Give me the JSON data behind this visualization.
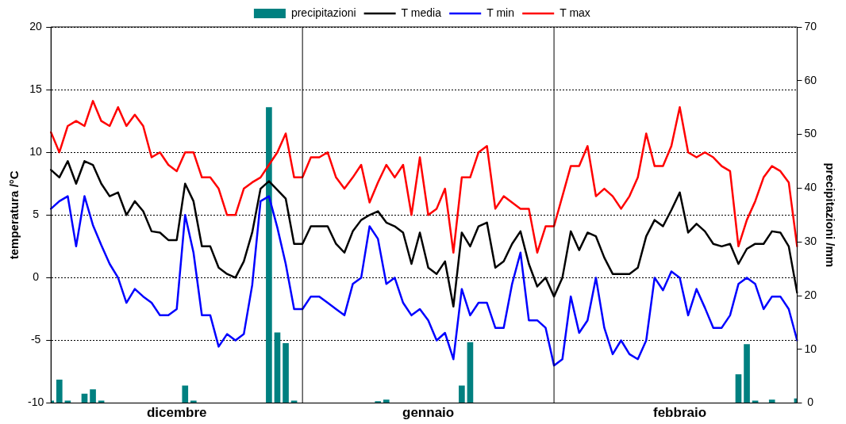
{
  "chart_data": {
    "type": "line",
    "categories": [
      null,
      null,
      null,
      null,
      null,
      null,
      null,
      null,
      null,
      null,
      null,
      null,
      null,
      null,
      null,
      "dicembre",
      null,
      null,
      null,
      null,
      null,
      null,
      null,
      null,
      null,
      null,
      null,
      null,
      null,
      null,
      null,
      null,
      null,
      null,
      null,
      null,
      null,
      null,
      null,
      null,
      null,
      null,
      null,
      null,
      null,
      "gennaio",
      null,
      null,
      null,
      null,
      null,
      null,
      null,
      null,
      null,
      null,
      null,
      null,
      null,
      null,
      null,
      null,
      null,
      null,
      null,
      null,
      null,
      null,
      null,
      null,
      null,
      null,
      null,
      null,
      null,
      "febbraio",
      null,
      null,
      null,
      null,
      null,
      null,
      null,
      null,
      null,
      null,
      null,
      null,
      null,
      null
    ],
    "ylabel": "temperatura /°C",
    "y2label": "precipitazioni /mm",
    "ylim": [
      -10,
      20
    ],
    "yticks": [
      -10,
      -5,
      0,
      5,
      10,
      15,
      20
    ],
    "y2lim": [
      0,
      70
    ],
    "y2ticks": [
      0,
      10,
      20,
      30,
      40,
      50,
      60,
      70
    ],
    "grid": "y",
    "legend": "top",
    "marker": "none",
    "line_style": "solid",
    "series": [
      {
        "name": "precipitazioni",
        "type": "bar",
        "axis": "y2",
        "color": "#008080",
        "values": [
          0.4,
          4.3,
          0.4,
          null,
          1.7,
          2.5,
          0.4,
          null,
          null,
          null,
          null,
          null,
          null,
          null,
          null,
          null,
          3.2,
          0.4,
          null,
          null,
          null,
          null,
          null,
          null,
          null,
          null,
          55,
          13.1,
          11.1,
          0.4,
          null,
          null,
          null,
          null,
          null,
          null,
          null,
          null,
          null,
          0.3,
          0.6,
          null,
          null,
          null,
          null,
          null,
          null,
          null,
          null,
          3.2,
          11.3,
          null,
          null,
          null,
          null,
          null,
          null,
          null,
          null,
          null,
          null,
          null,
          null,
          null,
          null,
          null,
          null,
          null,
          null,
          null,
          null,
          null,
          null,
          null,
          null,
          null,
          null,
          null,
          null,
          null,
          null,
          null,
          5.3,
          10.9,
          0.4,
          null,
          0.6,
          null,
          null,
          0.8
        ]
      },
      {
        "name": "T media",
        "color": "#000000",
        "values": [
          8.6,
          8.0,
          9.3,
          7.5,
          9.3,
          9.0,
          7.5,
          6.5,
          6.8,
          5.0,
          6.1,
          5.3,
          3.7,
          3.6,
          3.0,
          3.0,
          7.5,
          6.1,
          2.5,
          2.5,
          0.8,
          0.3,
          0.0,
          1.3,
          3.6,
          7.1,
          7.7,
          7.0,
          6.3,
          2.7,
          2.7,
          4.1,
          4.1,
          4.1,
          2.7,
          2.0,
          3.7,
          4.6,
          5.0,
          5.3,
          4.4,
          4.1,
          3.6,
          1.1,
          3.6,
          0.8,
          0.3,
          1.3,
          -2.3,
          3.6,
          2.5,
          4.1,
          4.4,
          0.8,
          1.3,
          2.7,
          3.7,
          1.1,
          -0.7,
          0.0,
          -1.5,
          0.0,
          3.7,
          2.2,
          3.6,
          3.3,
          1.6,
          0.3,
          0.3,
          0.3,
          0.8,
          3.3,
          4.6,
          4.1,
          5.4,
          6.8,
          3.6,
          4.3,
          3.7,
          2.7,
          2.5,
          2.7,
          1.1,
          2.3,
          2.7,
          2.7,
          3.7,
          3.6,
          2.5,
          -1.2
        ]
      },
      {
        "name": "T min",
        "color": "#0000ff",
        "values": [
          5.5,
          6.1,
          6.5,
          2.5,
          6.5,
          4.2,
          2.6,
          1.1,
          0.0,
          -2.0,
          -0.9,
          -1.5,
          -2.0,
          -3.0,
          -3.0,
          -2.5,
          5.0,
          2.0,
          -3.0,
          -3.0,
          -5.5,
          -4.5,
          -5.0,
          -4.5,
          -0.6,
          6.1,
          6.5,
          4.0,
          1.1,
          -2.5,
          -2.5,
          -1.5,
          -1.5,
          -2.0,
          -2.5,
          -3.0,
          -0.5,
          0.0,
          4.1,
          3.1,
          -0.5,
          0.0,
          -2.0,
          -3.0,
          -2.5,
          -3.4,
          -5.0,
          -4.4,
          -6.5,
          -0.9,
          -3.0,
          -2.0,
          -2.0,
          -4.0,
          -4.0,
          -0.5,
          2.0,
          -3.4,
          -3.4,
          -4.0,
          -7.0,
          -6.5,
          -1.5,
          -4.4,
          -3.4,
          0.0,
          -4.0,
          -6.1,
          -5.0,
          -6.1,
          -6.5,
          -5.0,
          0.0,
          -1.0,
          0.5,
          0.0,
          -3.0,
          -0.9,
          -2.4,
          -4.0,
          -4.0,
          -3.0,
          -0.5,
          0.0,
          -0.5,
          -2.5,
          -1.5,
          -1.5,
          -2.5,
          -5.0
        ]
      },
      {
        "name": "T max",
        "color": "#ff0000",
        "values": [
          11.6,
          10.0,
          12.1,
          12.5,
          12.1,
          14.1,
          12.5,
          12.1,
          13.6,
          12.1,
          13.0,
          12.1,
          9.6,
          10.0,
          9.0,
          8.5,
          10.0,
          10.0,
          8.0,
          8.0,
          7.1,
          5.0,
          5.0,
          7.1,
          7.6,
          8.0,
          9.0,
          10.0,
          11.5,
          8.0,
          8.0,
          9.6,
          9.6,
          10.0,
          8.0,
          7.1,
          8.0,
          9.0,
          6.0,
          7.6,
          9.0,
          8.0,
          9.0,
          5.0,
          9.6,
          5.0,
          5.5,
          7.1,
          2.0,
          8.0,
          8.0,
          10.0,
          10.5,
          5.5,
          6.5,
          6.0,
          5.5,
          5.5,
          2.0,
          4.1,
          4.1,
          6.5,
          8.9,
          8.9,
          10.5,
          6.5,
          7.1,
          6.5,
          5.5,
          6.5,
          8.0,
          11.5,
          8.9,
          8.9,
          10.5,
          13.6,
          10.0,
          9.6,
          10.0,
          9.6,
          8.9,
          8.5,
          2.5,
          4.6,
          6.1,
          8.0,
          8.9,
          8.5,
          7.6,
          2.5
        ]
      }
    ]
  }
}
